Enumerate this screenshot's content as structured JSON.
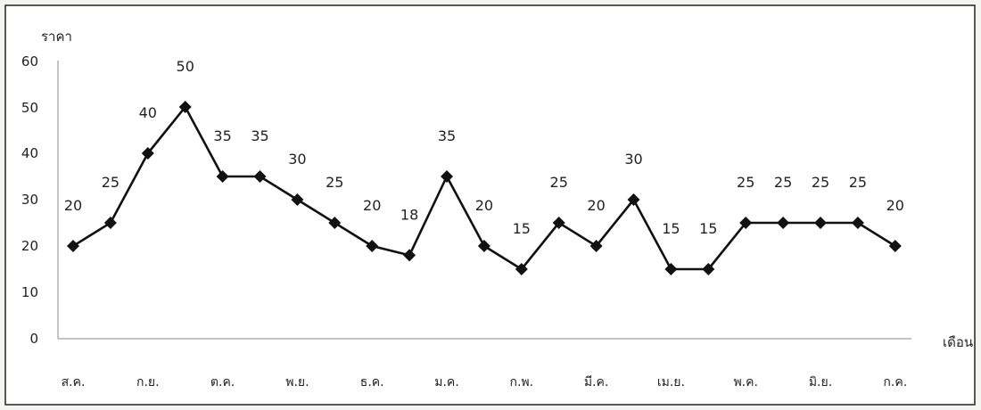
{
  "chart_data": {
    "type": "line",
    "ylabel": "ราคา",
    "xlabel": "เดือน",
    "ylim": [
      0,
      60
    ],
    "yticks": [
      "0",
      "10",
      "20",
      "30",
      "40",
      "50",
      "60"
    ],
    "month_labels": [
      "ส.ค.",
      "ก.ย.",
      "ต.ค.",
      "พ.ย.",
      "ธ.ค.",
      "ม.ค.",
      "ก.พ.",
      "มี.ค.",
      "เม.ย.",
      "พ.ค.",
      "มิ.ย.",
      "ก.ค."
    ],
    "values": [
      20,
      25,
      40,
      50,
      35,
      35,
      30,
      25,
      20,
      18,
      35,
      20,
      15,
      25,
      20,
      30,
      15,
      15,
      25,
      25,
      25,
      25,
      20
    ],
    "grid": false,
    "legend": "none",
    "line_color": "#111111"
  }
}
